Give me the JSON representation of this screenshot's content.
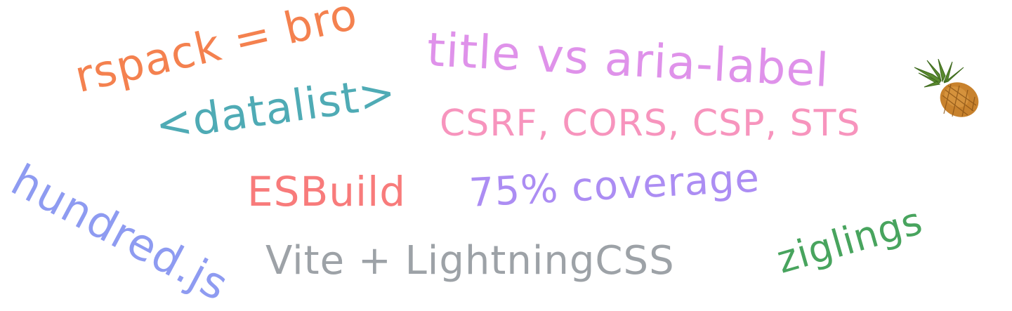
{
  "words": {
    "rspack": "rspack = bro",
    "title_vs_aria": "title vs aria-label",
    "datalist": "<datalist>",
    "security": "CSRF, CORS, CSP, STS",
    "hundred": "hundred.js",
    "esbuild": "ESBuild",
    "coverage": "75% coverage",
    "vite": "Vite + LightningCSS",
    "ziglings": "ziglings"
  },
  "colors": {
    "orange": "#f4814f",
    "pink_purple": "#df92ea",
    "teal": "#4fabb5",
    "pink": "#f794bd",
    "periwinkle": "#8e9bf1",
    "salmon": "#f87b7b",
    "lavender": "#ac8df3",
    "gray": "#9da2a7",
    "green": "#48a45e"
  },
  "decoration": {
    "icon": "pineapple-icon"
  }
}
